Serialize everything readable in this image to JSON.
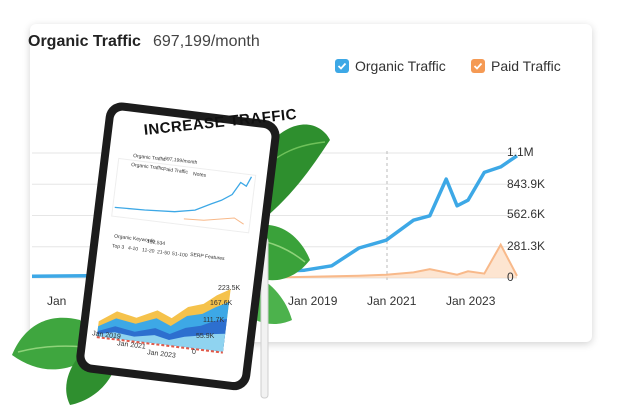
{
  "card": {
    "title": "Organic Traffic",
    "value": "697,199/month",
    "legend": [
      {
        "label": "Organic Traffic",
        "color": "#3da8e6",
        "checked": true
      },
      {
        "label": "Paid Traffic",
        "color": "#f59a54",
        "checked": true
      }
    ],
    "y_ticks": [
      "1.1M",
      "843.9K",
      "562.6K",
      "281.3K",
      "0"
    ],
    "x_ticks": [
      "Jan",
      "Jan 2019",
      "Jan 2021",
      "Jan 2023"
    ]
  },
  "tablet": {
    "headline": "INCREASE TRAFFIC",
    "mini_title": "Organic Traffic",
    "mini_value": "697,199/month",
    "mini_legend": [
      "Organic Traffic",
      "Paid Traffic",
      "Notes"
    ],
    "kw_title": "Organic Keywords",
    "kw_value": "192,534",
    "kw_legend": [
      "Top 3",
      "4-10",
      "11-20",
      "21-50",
      "51-100",
      "SERP Features"
    ],
    "kw_y_ticks": [
      "223.5K",
      "167.6K",
      "111.7K",
      "55.9K",
      "0"
    ],
    "kw_x_ticks": [
      "Jan 2019",
      "Jan 2021",
      "Jan 2023"
    ]
  },
  "chart_data": {
    "type": "line",
    "title": "Organic Traffic",
    "yticks": [
      "0",
      "281.3K",
      "562.6K",
      "843.9K",
      "1.1M"
    ],
    "ylim": [
      0,
      1125000
    ],
    "series": [
      {
        "name": "Organic Traffic",
        "color": "#3da8e6",
        "x": [
          "2015",
          "2016",
          "2017",
          "2018",
          "2019",
          "2019.5",
          "2020",
          "2020.5",
          "2021",
          "2021.5",
          "2022",
          "2022.3",
          "2022.6",
          "2022.8",
          "2023",
          "2023.3",
          "2023.6",
          "2023.9"
        ],
        "values": [
          15000,
          20000,
          22000,
          25000,
          30000,
          60000,
          70000,
          110000,
          270000,
          340000,
          520000,
          560000,
          890000,
          650000,
          700000,
          950000,
          1000000,
          1100000
        ]
      },
      {
        "name": "Paid Traffic",
        "color": "#f59a54",
        "x": [
          "2019",
          "2020",
          "2021",
          "2021.5",
          "2022",
          "2022.3",
          "2022.8",
          "2023",
          "2023.3",
          "2023.6",
          "2023.9"
        ],
        "values": [
          0,
          10000,
          20000,
          30000,
          50000,
          80000,
          30000,
          60000,
          40000,
          300000,
          20000
        ]
      }
    ]
  }
}
